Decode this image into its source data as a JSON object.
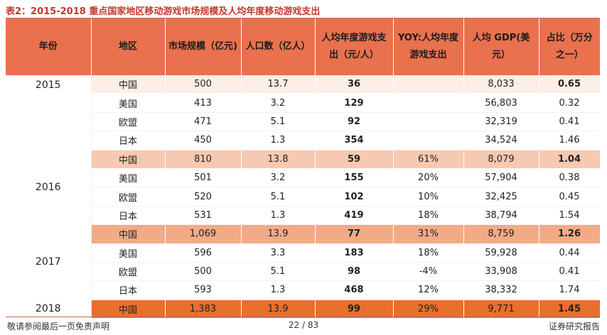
{
  "title": "表2：2015-2018 重点国家地区移动游戏市场规模及人均年度移动游戏支出",
  "headers": {
    "year": "年份",
    "region": "地区",
    "market": "市场规模（亿元)",
    "population": "人口数（亿人）",
    "spend": "人均年度游戏支出（元/人）",
    "yoy": "YOY:人均年度游戏支出",
    "gdp": "人均 GDP(美元）",
    "ratio": "占比（万分之一）"
  },
  "years": [
    "2015",
    "2016",
    "2017",
    "2018"
  ],
  "rows": [
    {
      "region": "中国",
      "market": "500",
      "population": "13.7",
      "spend": "36",
      "yoy": "",
      "gdp": "8,033",
      "ratio": "0.65"
    },
    {
      "region": "美国",
      "market": "413",
      "population": "3.2",
      "spend": "129",
      "yoy": "",
      "gdp": "56,803",
      "ratio": "0.32"
    },
    {
      "region": "欧盟",
      "market": "471",
      "population": "5.1",
      "spend": "92",
      "yoy": "",
      "gdp": "32,319",
      "ratio": "0.41"
    },
    {
      "region": "日本",
      "market": "450",
      "population": "1.3",
      "spend": "354",
      "yoy": "",
      "gdp": "34,524",
      "ratio": "1.46"
    },
    {
      "region": "中国",
      "market": "810",
      "population": "13.8",
      "spend": "59",
      "yoy": "61%",
      "gdp": "8,079",
      "ratio": "1.04"
    },
    {
      "region": "美国",
      "market": "501",
      "population": "3.2",
      "spend": "155",
      "yoy": "20%",
      "gdp": "57,904",
      "ratio": "0.38"
    },
    {
      "region": "欧盟",
      "market": "520",
      "population": "5.1",
      "spend": "102",
      "yoy": "10%",
      "gdp": "32,425",
      "ratio": "0.45"
    },
    {
      "region": "日本",
      "market": "531",
      "population": "1.3",
      "spend": "419",
      "yoy": "18%",
      "gdp": "38,794",
      "ratio": "1.54"
    },
    {
      "region": "中国",
      "market": "1,069",
      "population": "13.9",
      "spend": "77",
      "yoy": "31%",
      "gdp": "8,759",
      "ratio": "1.26"
    },
    {
      "region": "美国",
      "market": "596",
      "population": "3.3",
      "spend": "183",
      "yoy": "18%",
      "gdp": "59,928",
      "ratio": "0.44"
    },
    {
      "region": "欧盟",
      "market": "500",
      "population": "5.1",
      "spend": "98",
      "yoy": "-4%",
      "gdp": "33,908",
      "ratio": "0.41"
    },
    {
      "region": "日本",
      "market": "593",
      "population": "1.3",
      "spend": "468",
      "yoy": "12%",
      "gdp": "38,332",
      "ratio": "1.74"
    },
    {
      "region": "中国",
      "market": "1,383",
      "population": "13.9",
      "spend": "99",
      "yoy": "29%",
      "gdp": "9,771",
      "ratio": "1.45"
    }
  ],
  "footer": {
    "left": "敬请参阅最后一页免责声明",
    "page": "22 / 83",
    "right": "证券研究报告"
  },
  "colors": {
    "header": "#e9714e",
    "china_2015": "#fdeee6",
    "china_2016": "#f7c9b1",
    "china_2017": "#f3aa86",
    "china_2018": "#e86f2c",
    "title": "#c0392b"
  }
}
